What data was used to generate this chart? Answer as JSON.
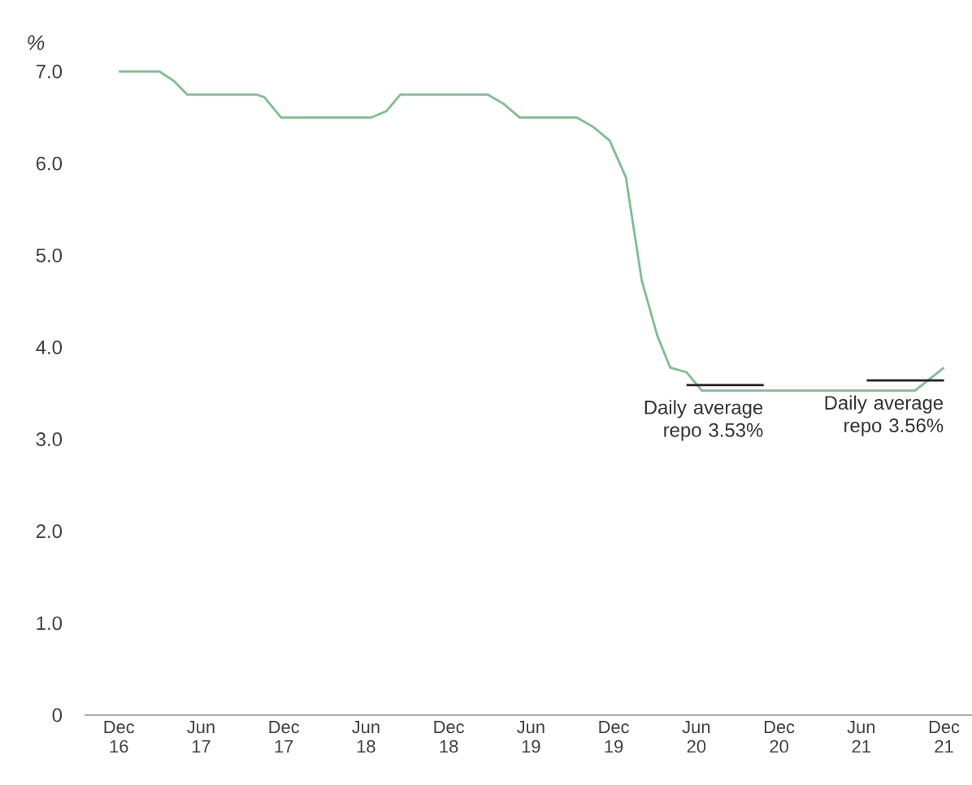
{
  "chart_data": {
    "type": "line",
    "ylabel": "%",
    "xlim": [
      "2016-09-16",
      "2022-02-01"
    ],
    "ylim": [
      0,
      7
    ],
    "xticks": [
      {
        "value": "2016-12-01",
        "label": "Dec 16"
      },
      {
        "value": "2017-06-01",
        "label": "Jun 17"
      },
      {
        "value": "2017-12-01",
        "label": "Dec 17"
      },
      {
        "value": "2018-06-01",
        "label": "Jun 18"
      },
      {
        "value": "2018-12-01",
        "label": "Dec 18"
      },
      {
        "value": "2019-06-01",
        "label": "Jun 19"
      },
      {
        "value": "2019-12-01",
        "label": "Dec 19"
      },
      {
        "value": "2020-06-01",
        "label": "Jun 20"
      },
      {
        "value": "2020-12-01",
        "label": "Dec 20"
      },
      {
        "value": "2021-06-01",
        "label": "Jun 21"
      },
      {
        "value": "2021-12-01",
        "label": "Dec 21"
      }
    ],
    "yticks": [
      0,
      {
        "value": 1,
        "label": "1.0"
      },
      {
        "value": 2,
        "label": "2.0"
      },
      {
        "value": 3,
        "label": "3.0"
      },
      {
        "value": 4,
        "label": "4.0"
      },
      {
        "value": 5,
        "label": "5.0"
      },
      {
        "value": 6,
        "label": "6.0"
      },
      {
        "value": 7,
        "label": "7.0"
      }
    ],
    "grid": false,
    "marker": "none",
    "line_style": "solid",
    "series": [
      {
        "color": "#7dbf8f",
        "x": [
          "2016-12-01",
          "2017-03-01",
          "2017-04-01",
          "2017-05-01",
          "2017-10-01",
          "2017-10-19",
          "2017-11-25",
          "2018-06-13",
          "2018-07-16",
          "2018-08-16",
          "2019-02-25",
          "2019-04-01",
          "2019-05-07",
          "2019-09-10",
          "2019-10-16",
          "2019-11-22",
          "2019-12-28",
          "2020-02-01",
          "2020-03-07",
          "2020-04-04",
          "2020-05-10",
          "2020-06-13",
          "2021-09-28",
          "2021-12-01"
        ],
        "values": [
          7.0,
          7.0,
          6.9,
          6.75,
          6.75,
          6.72,
          6.5,
          6.5,
          6.57,
          6.75,
          6.75,
          6.65,
          6.5,
          6.5,
          6.4,
          6.25,
          5.85,
          4.73,
          4.12,
          3.78,
          3.73,
          3.53,
          3.53,
          3.78
        ]
      },
      {
        "color": "#222222",
        "x": [
          "2020-05-10",
          "2020-10-28"
        ],
        "values": [
          3.59,
          3.59
        ]
      },
      {
        "color": "#222222",
        "x": [
          "2021-06-13",
          "2021-12-01"
        ],
        "values": [
          3.64,
          3.64
        ]
      }
    ],
    "annotations": [
      {
        "text": "Daily average repo 3.53%",
        "x": "2020-10-28",
        "y": 3.59
      },
      {
        "text": "Daily average repo 3.56%",
        "x": "2021-12-01",
        "y": 3.64
      }
    ]
  }
}
